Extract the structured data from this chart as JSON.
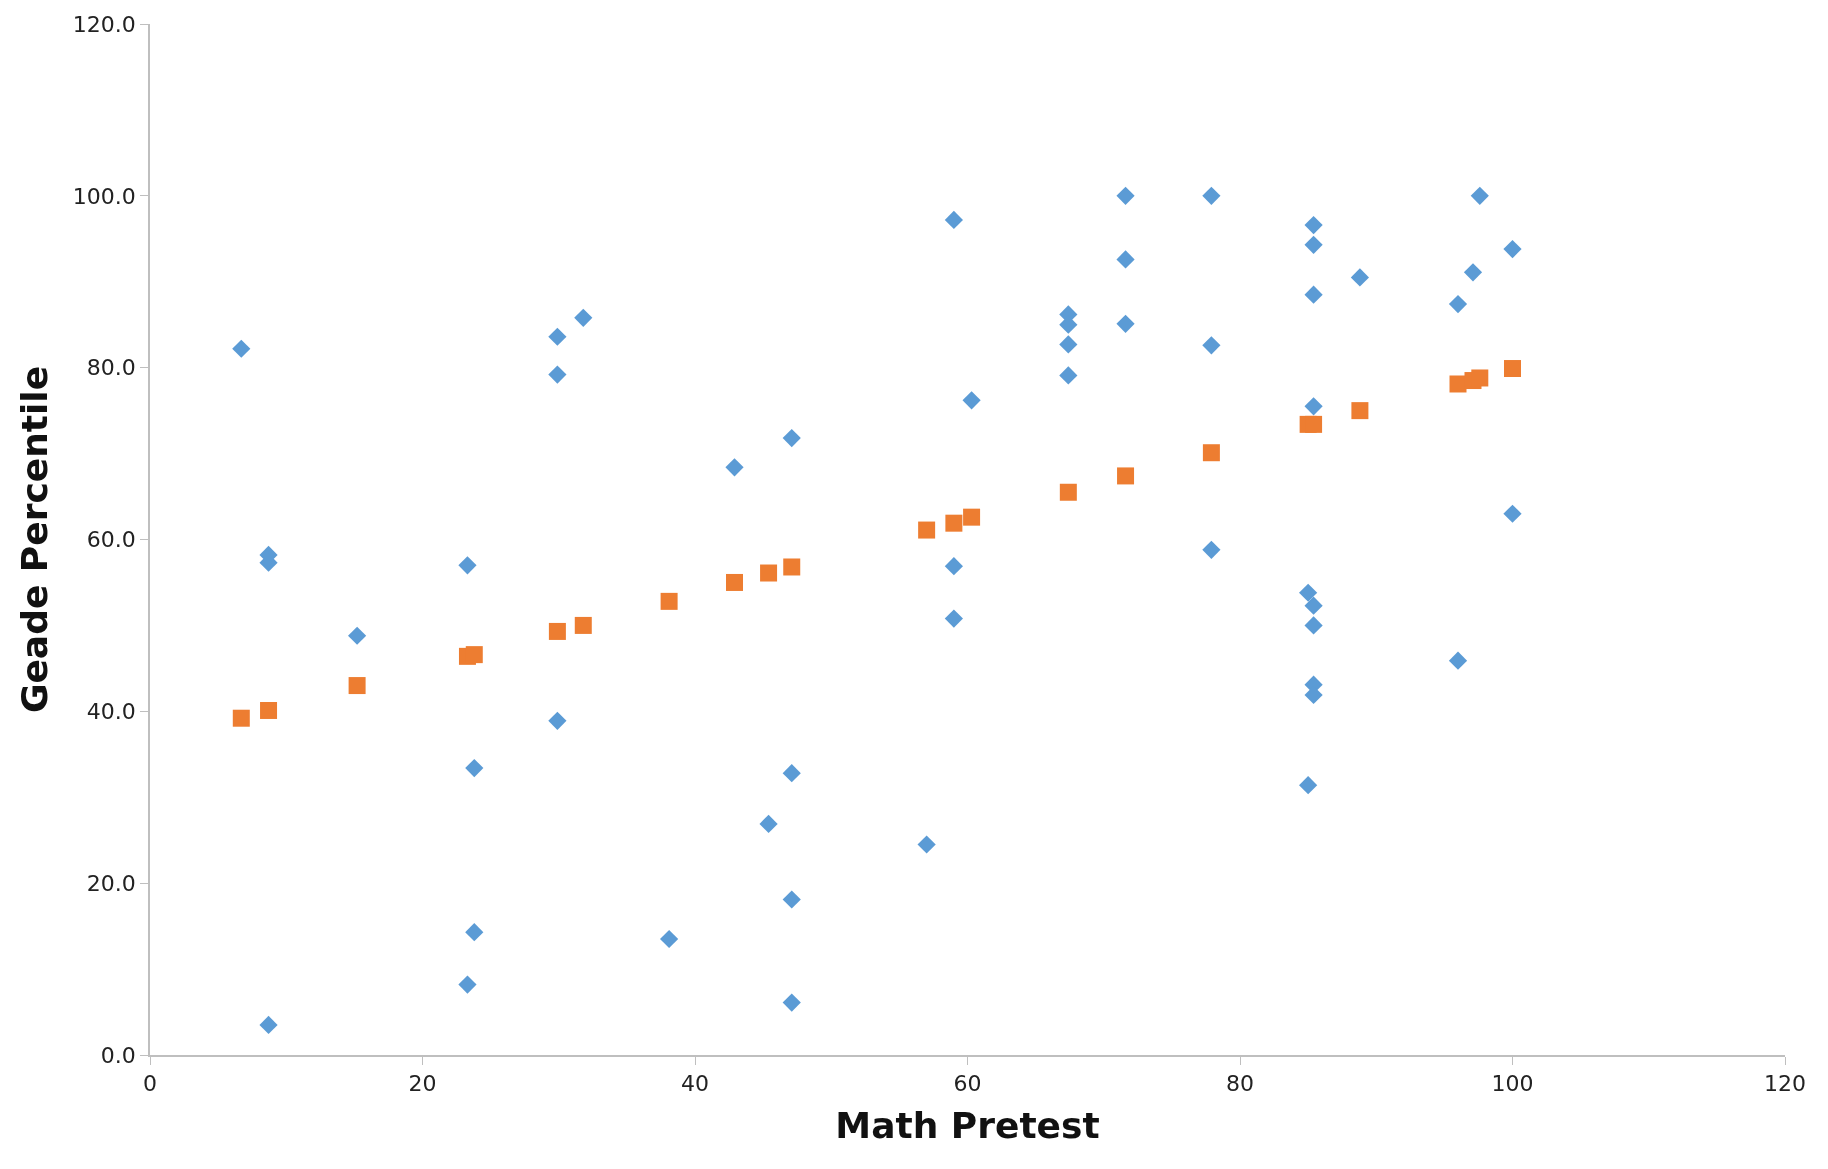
{
  "chart_data": {
    "type": "scatter",
    "xlabel": "Math Pretest",
    "ylabel": "Geade Percentile",
    "xlim": [
      0,
      120
    ],
    "xticks": [
      0,
      20,
      40,
      60,
      80,
      100,
      120
    ],
    "ylim": [
      0,
      120
    ],
    "yticks": [
      {
        "value": 0,
        "label": "0.0"
      },
      {
        "value": 20,
        "label": "20.0"
      },
      {
        "value": 40,
        "label": "40.0"
      },
      {
        "value": 60,
        "label": "60.0"
      },
      {
        "value": 80,
        "label": "80.0"
      },
      {
        "value": 100,
        "label": "100.0"
      },
      {
        "value": 120,
        "label": "120.0"
      }
    ],
    "grid": false,
    "series": [
      {
        "color": "#5b9bd5",
        "marker": "diamond",
        "x": [
          6.7,
          8.7,
          8.7,
          8.7,
          15.2,
          23.3,
          23.3,
          23.8,
          23.8,
          29.9,
          29.9,
          29.9,
          31.8,
          38.1,
          42.9,
          45.4,
          47.1,
          47.1,
          47.1,
          47.1,
          57.0,
          59.0,
          59.0,
          59.0,
          60.3,
          67.4,
          67.4,
          67.4,
          67.4,
          71.6,
          71.6,
          71.6,
          77.9,
          77.9,
          77.9,
          85.0,
          85.4,
          85.4,
          85.4,
          85.4,
          85.0,
          85.4,
          85.4,
          85.4,
          85.4,
          88.8,
          96.0,
          96.0,
          97.1,
          97.6,
          100.0,
          100.0
        ],
        "values": [
          82.2,
          58.2,
          57.3,
          3.5,
          48.8,
          57.0,
          8.2,
          33.4,
          14.3,
          83.6,
          79.2,
          38.9,
          85.8,
          13.5,
          68.4,
          26.9,
          71.8,
          32.8,
          18.1,
          6.1,
          24.5,
          97.2,
          56.9,
          50.8,
          76.2,
          86.2,
          85.0,
          82.7,
          79.1,
          100.0,
          92.6,
          85.1,
          100.0,
          82.6,
          58.8,
          53.8,
          52.3,
          50.0,
          43.1,
          41.9,
          31.4,
          96.6,
          94.3,
          88.5,
          75.5,
          90.5,
          87.4,
          45.9,
          91.1,
          100.0,
          93.8,
          63.0
        ]
      },
      {
        "color": "#ed7d31",
        "marker": "square",
        "x": [
          6.7,
          8.7,
          15.2,
          23.3,
          23.8,
          29.9,
          31.8,
          38.1,
          42.9,
          45.4,
          47.1,
          57.0,
          59.0,
          60.3,
          67.4,
          71.6,
          77.9,
          85.0,
          85.4,
          88.8,
          96.0,
          97.1,
          97.6,
          100.0
        ],
        "values": [
          39.2,
          40.1,
          43.0,
          46.4,
          46.6,
          49.3,
          50.0,
          52.8,
          55.0,
          56.1,
          56.8,
          61.1,
          61.9,
          62.6,
          65.5,
          67.4,
          70.1,
          73.4,
          73.4,
          75.0,
          78.1,
          78.5,
          78.8,
          79.9
        ]
      }
    ]
  }
}
